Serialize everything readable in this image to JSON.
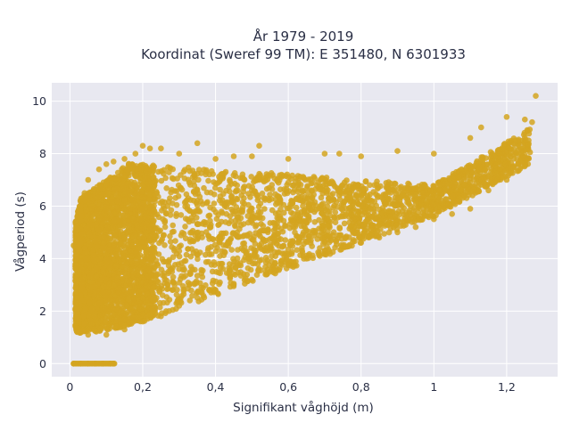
{
  "chart_data": {
    "type": "scatter",
    "title_lines": [
      "År 1979 - 2019",
      "Koordinat (Sweref 99 TM): E 351480, N 6301933"
    ],
    "xlabel": "Signifikant våghöjd (m)",
    "ylabel": "Vågperiod (s)",
    "xlim": [
      -0.05,
      1.34
    ],
    "ylim": [
      -0.5,
      10.7
    ],
    "x_ticks": [
      0,
      0.2,
      0.4,
      0.6,
      0.8,
      1,
      1.2
    ],
    "x_tick_labels": [
      "0",
      "0,2",
      "0,4",
      "0,6",
      "0,8",
      "1",
      "1,2"
    ],
    "y_ticks": [
      0,
      2,
      4,
      6,
      8,
      10
    ],
    "y_tick_labels": [
      "0",
      "2",
      "4",
      "6",
      "8",
      "10"
    ],
    "grid": true,
    "legend": "none",
    "marker_color": "#D4A520",
    "plot_bg": "#E8E8F0",
    "series": [
      {
        "points": [
          [
            0.01,
            0
          ],
          [
            0.03,
            0
          ],
          [
            0.05,
            0
          ],
          [
            0.07,
            0
          ],
          [
            0.09,
            0
          ],
          [
            0.11,
            0
          ],
          [
            0.12,
            0
          ],
          [
            0.01,
            4.5
          ],
          [
            0.02,
            2.5
          ],
          [
            0.03,
            6.0
          ],
          [
            0.04,
            6.5
          ],
          [
            0.05,
            7.0
          ],
          [
            0.06,
            6.0
          ],
          [
            0.08,
            7.4
          ],
          [
            0.1,
            7.6
          ],
          [
            0.12,
            7.7
          ],
          [
            0.15,
            7.8
          ],
          [
            0.18,
            8.0
          ],
          [
            0.2,
            8.3
          ],
          [
            0.22,
            8.2
          ],
          [
            0.25,
            8.2
          ],
          [
            0.3,
            8.0
          ],
          [
            0.35,
            8.4
          ],
          [
            0.4,
            7.8
          ],
          [
            0.45,
            7.9
          ],
          [
            0.5,
            7.9
          ],
          [
            0.52,
            8.3
          ],
          [
            0.6,
            7.8
          ],
          [
            0.7,
            8.0
          ],
          [
            0.74,
            8.0
          ],
          [
            0.8,
            7.9
          ],
          [
            0.9,
            8.1
          ],
          [
            1.0,
            8.0
          ],
          [
            1.1,
            8.6
          ],
          [
            1.13,
            9.0
          ],
          [
            1.2,
            9.4
          ],
          [
            1.25,
            9.3
          ],
          [
            1.27,
            9.2
          ],
          [
            1.28,
            10.2
          ],
          [
            0.02,
            1.2
          ],
          [
            0.05,
            1.1
          ],
          [
            0.1,
            1.1
          ],
          [
            0.15,
            1.3
          ],
          [
            0.2,
            1.6
          ],
          [
            0.25,
            1.8
          ],
          [
            0.3,
            2.2
          ],
          [
            0.35,
            2.5
          ],
          [
            0.4,
            2.8
          ],
          [
            0.45,
            3.0
          ],
          [
            0.5,
            3.2
          ],
          [
            0.55,
            3.5
          ],
          [
            0.6,
            3.8
          ],
          [
            0.65,
            4.0
          ],
          [
            0.7,
            4.3
          ],
          [
            0.75,
            4.5
          ],
          [
            0.8,
            4.6
          ],
          [
            0.85,
            4.8
          ],
          [
            0.9,
            5.0
          ],
          [
            0.95,
            5.2
          ],
          [
            1.0,
            5.5
          ],
          [
            1.05,
            5.7
          ],
          [
            1.1,
            5.9
          ],
          [
            1.15,
            6.6
          ],
          [
            1.2,
            7.0
          ]
        ]
      }
    ]
  }
}
